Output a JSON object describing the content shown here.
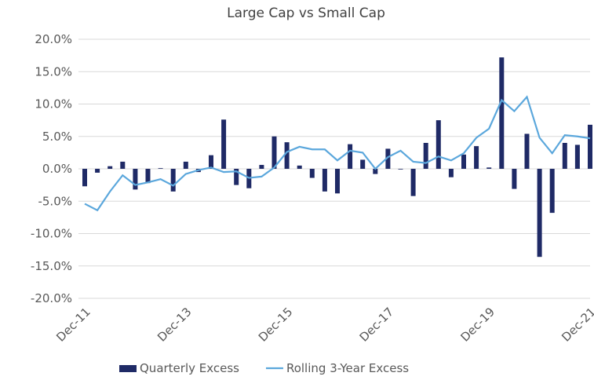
{
  "chart_data": {
    "type": "bar_line",
    "title": "Large Cap vs Small Cap",
    "categories": [
      "Dec-11",
      null,
      null,
      null,
      null,
      null,
      null,
      null,
      "Dec-13",
      null,
      null,
      null,
      null,
      null,
      null,
      null,
      "Dec-15",
      null,
      null,
      null,
      null,
      null,
      null,
      null,
      "Dec-17",
      null,
      null,
      null,
      null,
      null,
      null,
      null,
      "Dec-19",
      null,
      null,
      null,
      null,
      null,
      null,
      null,
      "Dec-21"
    ],
    "series": [
      {
        "name": "Quarterly Excess",
        "type": "bar",
        "color": "#1f2a66",
        "values": [
          -2.7,
          -0.6,
          0.4,
          1.1,
          -3.2,
          -2.2,
          0.1,
          -3.5,
          1.1,
          -0.5,
          2.1,
          7.6,
          -2.5,
          -3.0,
          0.6,
          5.0,
          4.1,
          0.5,
          -1.4,
          -3.5,
          -3.8,
          3.8,
          1.4,
          -0.8,
          3.1,
          -0.1,
          -4.2,
          4.0,
          7.5,
          -1.3,
          2.2,
          3.5,
          0.2,
          17.2,
          -3.1,
          5.4,
          -13.6,
          -6.8,
          4.0,
          3.7,
          6.8
        ]
      },
      {
        "name": "Rolling 3-Year Excess",
        "type": "line",
        "color": "#5ba7dc",
        "values": [
          -5.4,
          -6.4,
          -3.5,
          -1.0,
          -2.5,
          -2.1,
          -1.6,
          -2.6,
          -0.8,
          -0.2,
          0.2,
          -0.5,
          -0.4,
          -1.4,
          -1.2,
          0.2,
          2.6,
          3.4,
          3.0,
          3.0,
          1.3,
          2.8,
          2.5,
          0.0,
          1.8,
          2.8,
          1.1,
          0.9,
          1.9,
          1.3,
          2.4,
          4.8,
          6.2,
          10.6,
          8.9,
          11.1,
          4.8,
          2.4,
          5.2,
          5.0,
          4.7
        ]
      }
    ],
    "ylim": [
      -20,
      20
    ],
    "yticks": [
      {
        "value": -20,
        "label": "-20.0%"
      },
      {
        "value": -15,
        "label": "-15.0%"
      },
      {
        "value": -10,
        "label": "-10.0%"
      },
      {
        "value": -5,
        "label": "-5.0%"
      },
      {
        "value": 0,
        "label": "0.0%"
      },
      {
        "value": 5,
        "label": "5.0%"
      },
      {
        "value": 10,
        "label": "10.0%"
      },
      {
        "value": 15,
        "label": "15.0%"
      },
      {
        "value": 20,
        "label": "20.0%"
      }
    ],
    "grid": true,
    "legend": "bottom"
  }
}
